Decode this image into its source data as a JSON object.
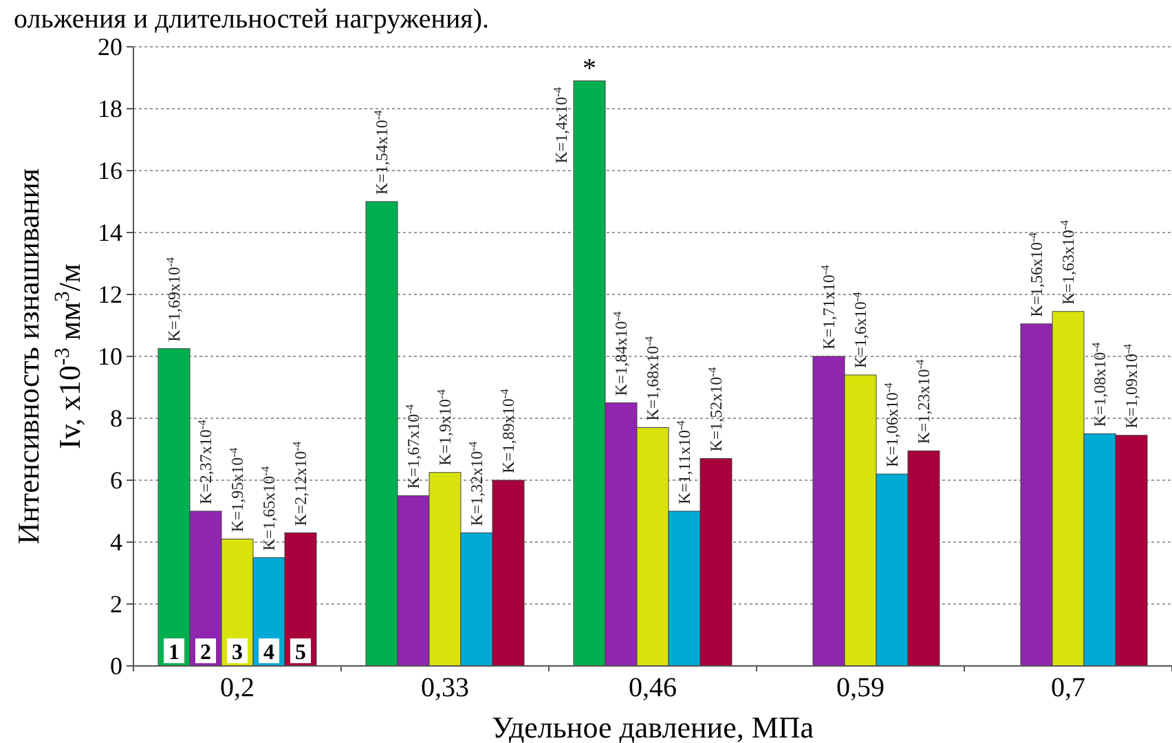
{
  "chart_data": {
    "type": "bar",
    "ylabel": "Интенсивность изнашивания\nIv, x10$^{-3}$ мм$^{3}$/м",
    "xlabel": "Удельное давление, МПа",
    "categories": [
      "0,2",
      "0,33",
      "0,46",
      "0,59",
      "0,7"
    ],
    "ylim": [
      0,
      20
    ],
    "yticks": [
      0,
      2,
      4,
      6,
      8,
      10,
      12,
      14,
      16,
      18,
      20
    ],
    "grid": "y",
    "series": [
      {
        "name": "1",
        "color": "#00b050",
        "values": [
          10.25,
          15.0,
          18.9,
          null,
          null
        ],
        "value_labels": [
          "K=1,69x10$^{-4}$",
          "K=1,54x10$^{-4}$",
          "K=1,4x10$^{-4}$",
          null,
          null
        ]
      },
      {
        "name": "2",
        "color": "#9025b0",
        "values": [
          5.0,
          5.5,
          8.5,
          10.0,
          11.05
        ],
        "value_labels": [
          "K=2,37x10$^{-4}$",
          "K=1,67x10$^{-4}$",
          "K=1,84x10$^{-4}$",
          "K=1,71x10$^{-4}$",
          "K=1,56x10$^{-4}$"
        ]
      },
      {
        "name": "3",
        "color": "#d9e30b",
        "values": [
          4.1,
          6.25,
          7.7,
          9.4,
          11.45
        ],
        "value_labels": [
          "K=1,95x10$^{-4}$",
          "K=1,9x10$^{-4}$",
          "K=1,68x10$^{-4}$",
          "K=1,6x10$^{-4}$",
          "K=1,63x10$^{-4}$"
        ]
      },
      {
        "name": "4",
        "color": "#00aad4",
        "values": [
          3.5,
          4.3,
          5.0,
          6.2,
          7.5
        ],
        "value_labels": [
          "K=1,65x10$^{-4}$",
          "K=1,32x10$^{-4}$",
          "K=1,11x10$^{-4}$",
          "K=1,06x10$^{-4}$",
          "K=1,08x10$^{-4}$"
        ]
      },
      {
        "name": "5",
        "color": "#a8003c",
        "values": [
          4.3,
          6.0,
          6.7,
          6.95,
          7.45
        ],
        "value_labels": [
          "K=2,12x10$^{-4}$",
          "K=1,89x10$^{-4}$",
          "K=1,52x10$^{-4}$",
          "K=1,23x10$^{-4}$",
          "K=1,09x10$^{-4}$"
        ]
      }
    ],
    "annotations": [
      "ольжения и длительностей нагружения).",
      "*"
    ]
  }
}
